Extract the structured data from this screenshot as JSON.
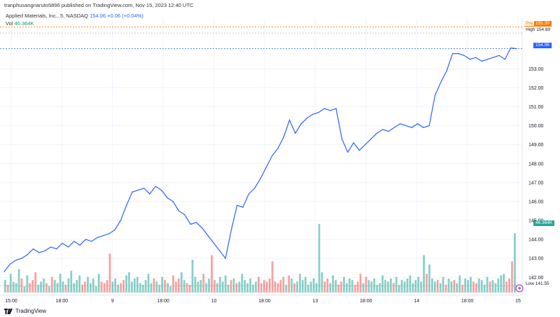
{
  "header": {
    "published": "tranphusangnaruto5896 published on TradingView.com, Nov 15, 2023 12:40 UTC",
    "symbol": "Applied Materials, Inc., 5, NASDAQ",
    "last": "154.06",
    "change": "+0.06 (+0.04%)",
    "vol_label": "Vol",
    "vol_value": "46.364K"
  },
  "labels": {
    "pre_tag": "Pre",
    "pre_value": "155.20",
    "high_tag": "High",
    "high_value": "154.89",
    "price": "154.06",
    "volume": "46.364K",
    "low_tag": "Low",
    "low_value": "141.55"
  },
  "footer": {
    "brand": "TradingView"
  },
  "colors": {
    "line": "#2962ff",
    "vol_up": "#26a69a",
    "vol_down": "#ef5350",
    "pre": "#f57c00",
    "grid": "#f0f3fa",
    "axis_text": "#131722"
  },
  "chart_data": {
    "type": "line",
    "title": "Applied Materials, Inc., 5, NASDAQ",
    "x_ticks": [
      "15:00",
      "18:00",
      "9",
      "18:00",
      "10",
      "18:00",
      "13",
      "18:00",
      "14",
      "18:00",
      "15"
    ],
    "y_ticks": [
      142,
      143,
      144,
      145,
      146,
      147,
      148,
      149,
      150,
      151,
      152,
      153
    ],
    "ylim": [
      141.2,
      155.3
    ],
    "grid": true,
    "series": [
      {
        "values": [
          142.3,
          142.7,
          142.9,
          143.0,
          143.2,
          143.5,
          143.3,
          143.4,
          143.6,
          143.5,
          143.8,
          143.6,
          143.9,
          143.7,
          144.0,
          143.9,
          144.1,
          144.2,
          144.3,
          144.5,
          145.0,
          145.8,
          146.5,
          146.6,
          146.7,
          146.4,
          146.8,
          146.6,
          146.2,
          146.0,
          145.5,
          145.3,
          144.8,
          144.9,
          144.6,
          144.2,
          143.8,
          143.4,
          143.0,
          144.5,
          145.8,
          145.7,
          146.4,
          146.7,
          147.2,
          147.8,
          148.4,
          148.8,
          149.4,
          150.3,
          149.6,
          150.1,
          150.4,
          150.6,
          150.7,
          150.9,
          150.8,
          150.9,
          149.3,
          148.6,
          149.1,
          148.7,
          149.0,
          149.3,
          149.6,
          149.8,
          149.7,
          149.9,
          150.1,
          150.0,
          149.9,
          150.1,
          149.9,
          150.0,
          151.6,
          152.3,
          152.9,
          153.8,
          153.8,
          153.7,
          153.5,
          153.6,
          153.4,
          153.5,
          153.6,
          153.7,
          153.5,
          154.1,
          154.06
        ]
      }
    ],
    "volume": [
      8,
      5,
      12,
      7,
      6,
      15,
      9,
      4,
      11,
      6,
      8,
      13,
      5,
      7,
      9,
      6,
      4,
      10,
      8,
      6,
      12,
      7,
      5,
      9,
      14,
      6,
      8,
      11,
      5,
      7,
      10,
      6,
      9,
      4,
      12,
      7,
      6,
      8,
      25,
      7,
      9,
      5,
      6,
      8,
      11,
      13,
      7,
      9,
      10,
      6,
      5,
      8,
      12,
      6,
      9,
      7,
      5,
      10,
      8,
      6,
      4,
      11,
      7,
      9,
      13,
      8,
      6,
      5,
      21,
      10,
      7,
      8,
      12,
      6,
      9,
      24,
      8,
      6,
      10,
      7,
      11,
      5,
      8,
      9,
      6,
      7,
      12,
      8,
      6,
      9,
      5,
      7,
      10,
      6,
      8,
      7,
      9,
      20,
      7,
      6,
      8,
      10,
      5,
      11,
      9,
      6,
      7,
      12,
      8,
      10,
      5,
      7,
      9,
      6,
      44,
      13,
      7,
      9,
      6,
      11,
      8,
      5,
      7,
      10,
      6,
      9,
      8,
      5,
      7,
      12,
      6,
      10,
      8,
      7,
      9,
      5,
      6,
      11,
      8,
      7,
      9,
      6,
      10,
      5,
      8,
      7,
      9,
      11,
      6,
      8,
      10,
      7,
      24,
      12,
      18,
      9,
      7,
      8,
      6,
      10,
      5,
      9,
      7,
      8,
      6,
      11,
      5,
      9,
      8,
      10,
      7,
      6,
      9,
      8,
      5,
      10,
      7,
      8,
      6,
      9,
      11,
      12,
      7,
      9,
      20,
      38
    ]
  }
}
